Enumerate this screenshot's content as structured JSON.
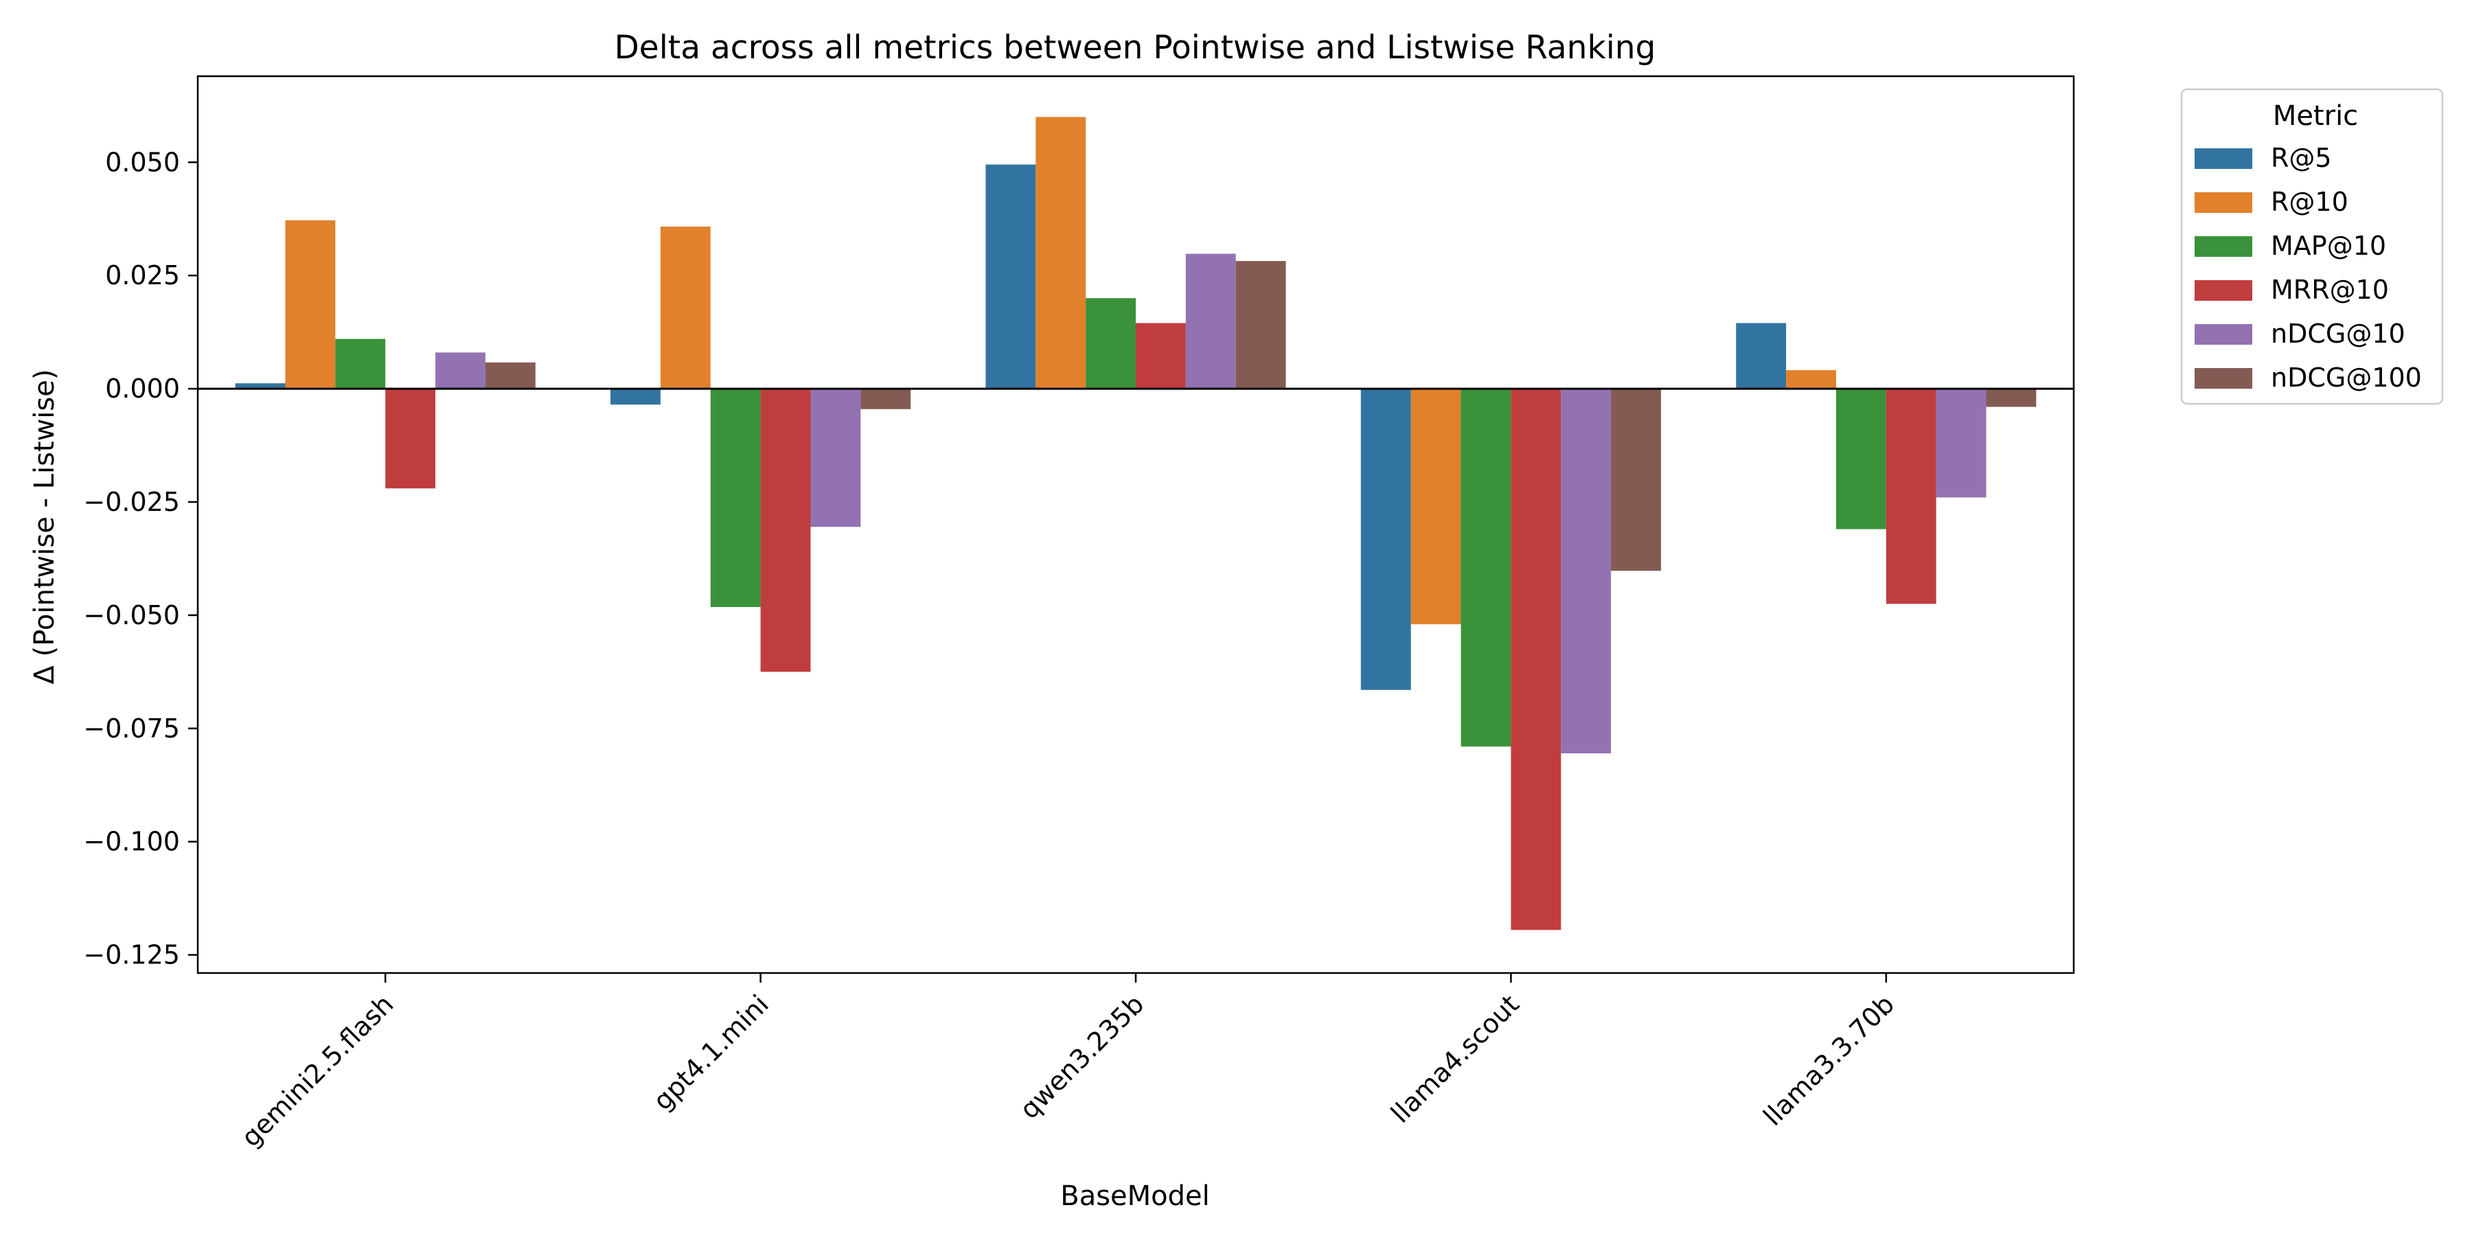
{
  "chart_data": {
    "type": "bar",
    "title": "Delta across all metrics between Pointwise and Listwise Ranking",
    "xlabel": "BaseModel",
    "ylabel": "Δ (Pointwise - Listwise)",
    "categories": [
      "gemini2.5.flash",
      "gpt4.1.mini",
      "qwen3.235b",
      "llama4.scout",
      "llama3.3.70b"
    ],
    "ylim": [
      -0.129,
      0.069
    ],
    "yticks": [
      0.05,
      0.025,
      0.0,
      -0.025,
      -0.05,
      -0.075,
      -0.1,
      -0.125
    ],
    "ytick_labels": [
      "0.050",
      "0.025",
      "0.000",
      "−0.025",
      "−0.050",
      "−0.075",
      "−0.100",
      "−0.125"
    ],
    "grid": false,
    "legend": {
      "title": "Metric",
      "placement": "outside-top-right"
    },
    "series": [
      {
        "name": "R@5",
        "color": "#3274a1",
        "values": [
          0.0012,
          -0.0035,
          0.0495,
          -0.0665,
          0.0145
        ]
      },
      {
        "name": "R@10",
        "color": "#e1812c",
        "values": [
          0.0372,
          0.0358,
          0.06,
          -0.052,
          0.0041
        ]
      },
      {
        "name": "MAP@10",
        "color": "#3a923a",
        "values": [
          0.011,
          -0.0482,
          0.02,
          -0.079,
          -0.031
        ]
      },
      {
        "name": "MRR@10",
        "color": "#c03d3e",
        "values": [
          -0.022,
          -0.0625,
          0.0145,
          -0.1195,
          -0.0475
        ]
      },
      {
        "name": "nDCG@10",
        "color": "#9372b2",
        "values": [
          0.008,
          -0.0305,
          0.0298,
          -0.0805,
          -0.024
        ]
      },
      {
        "name": "nDCG@100",
        "color": "#845b53",
        "values": [
          0.0058,
          -0.0045,
          0.0282,
          -0.0402,
          -0.004
        ]
      }
    ]
  }
}
